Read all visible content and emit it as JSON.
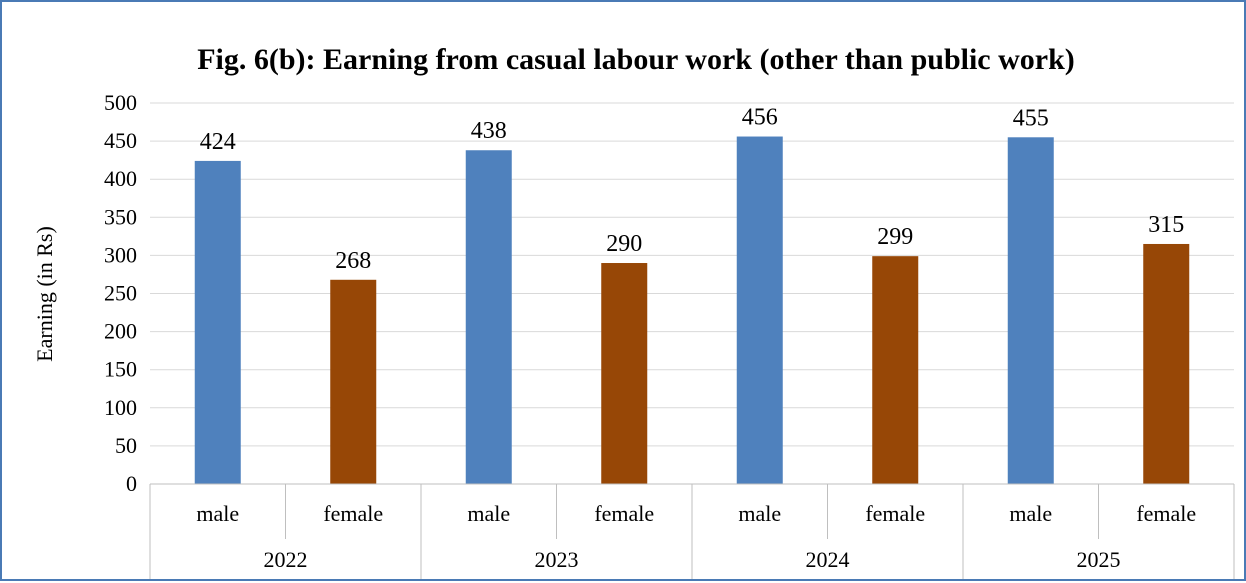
{
  "chart_data": {
    "type": "bar",
    "title": "Fig. 6(b): Earning from casual labour work (other than public work)",
    "ylabel": "Earning (in Rs)",
    "xlabel": "",
    "ylim": [
      0,
      500
    ],
    "yticks": [
      0,
      50,
      100,
      150,
      200,
      250,
      300,
      350,
      400,
      450,
      500
    ],
    "grid": true,
    "legend": "none",
    "groups": [
      {
        "year": "2022",
        "bars": [
          {
            "category": "male",
            "value": 424
          },
          {
            "category": "female",
            "value": 268
          }
        ]
      },
      {
        "year": "2023",
        "bars": [
          {
            "category": "male",
            "value": 438
          },
          {
            "category": "female",
            "value": 290
          }
        ]
      },
      {
        "year": "2024",
        "bars": [
          {
            "category": "male",
            "value": 456
          },
          {
            "category": "female",
            "value": 299
          }
        ]
      },
      {
        "year": "2025",
        "bars": [
          {
            "category": "male",
            "value": 455
          },
          {
            "category": "female",
            "value": 315
          }
        ]
      }
    ],
    "colors": {
      "male": "#4f81bd",
      "female": "#974706"
    }
  }
}
